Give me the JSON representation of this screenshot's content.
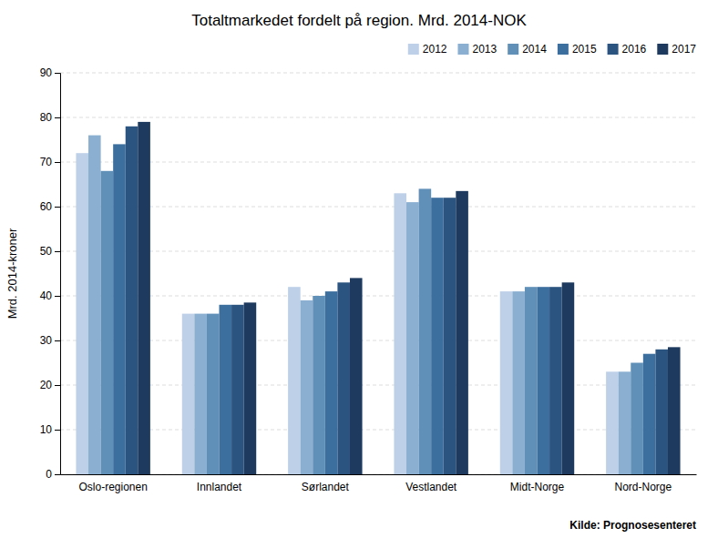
{
  "chart_data": {
    "type": "bar",
    "title": "Totaltmarkedet fordelt på region. Mrd. 2014-NOK",
    "ylabel": "Mrd. 2014-kroner",
    "annotations": [
      "Kilde: Prognosesenteret"
    ],
    "categories": [
      "Oslo-regionen",
      "Innlandet",
      "Sørlandet",
      "Vestlandet",
      "Midt-Norge",
      "Nord-Norge"
    ],
    "series": [
      {
        "name": "2012",
        "color": "#bdd0e8",
        "values": [
          72,
          36,
          42,
          63,
          41,
          23
        ]
      },
      {
        "name": "2013",
        "color": "#8aafd0",
        "values": [
          76,
          36,
          39,
          61,
          41,
          23
        ]
      },
      {
        "name": "2014",
        "color": "#6090b8",
        "values": [
          68,
          36,
          40,
          64,
          42,
          25
        ]
      },
      {
        "name": "2015",
        "color": "#3d6f9e",
        "values": [
          74,
          38,
          41,
          62,
          42,
          27
        ]
      },
      {
        "name": "2016",
        "color": "#2c5480",
        "values": [
          78,
          38,
          43,
          62,
          42,
          28
        ]
      },
      {
        "name": "2017",
        "color": "#1e3a5f",
        "values": [
          79,
          38.5,
          44,
          63.5,
          43,
          28.5
        ]
      }
    ],
    "ylim": [
      0,
      90
    ],
    "yticks": [
      0,
      10,
      20,
      30,
      40,
      50,
      60,
      70,
      80,
      90
    ],
    "grid": true,
    "legend": "upper right"
  }
}
